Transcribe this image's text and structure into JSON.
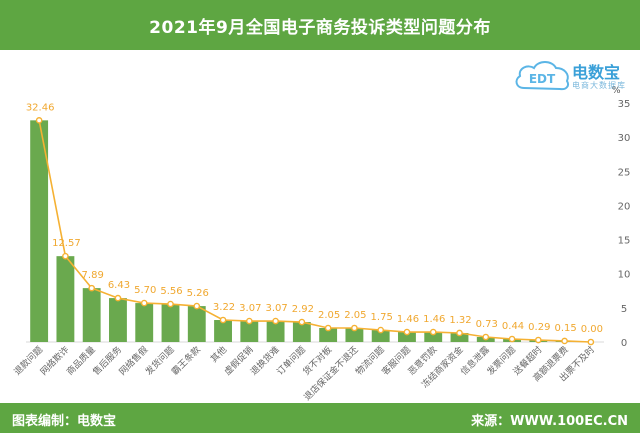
{
  "header": {
    "title": "2021年9月全国电子商务投诉类型问题分布"
  },
  "footer": {
    "left_text": "图表编制：电数宝",
    "right_text": "来源：WWW.100EC.CN"
  },
  "logo": {
    "mark_text": "EDT",
    "brand_text": "电数宝",
    "sub_text": "电商大数据库"
  },
  "colors": {
    "header_bg": "#5ea642",
    "bar": "#6aa94e",
    "line": "#f5b133",
    "label": "#f0a830",
    "axis_text": "#666666"
  },
  "chart_data": {
    "type": "bar+line",
    "unit_label": "%",
    "ylim": [
      0,
      35
    ],
    "yticks": [
      0,
      5,
      10,
      15,
      20,
      25,
      30,
      35
    ],
    "y_axis_side": "right",
    "grid": false,
    "categories": [
      "退款问题",
      "网络欺诈",
      "商品质量",
      "售后服务",
      "网络售假",
      "发货问题",
      "霸王条款",
      "其他",
      "虚假促销",
      "退换货难",
      "订单问题",
      "货不对板",
      "退店保证金不退还",
      "物流问题",
      "客服问题",
      "恶意罚款",
      "冻结商家资金",
      "信息泄露",
      "发票问题",
      "送餐超时",
      "高额退票费",
      "出票不及时"
    ],
    "values": [
      32.46,
      12.57,
      7.89,
      6.43,
      5.7,
      5.56,
      5.26,
      3.22,
      3.07,
      3.07,
      2.92,
      2.05,
      2.05,
      1.75,
      1.46,
      1.46,
      1.32,
      0.73,
      0.44,
      0.29,
      0.15,
      0.0
    ],
    "value_labels": [
      "32.46",
      "12.57",
      "7.89",
      "6.43",
      "5.70",
      "5.56",
      "5.26",
      "3.22",
      "3.07",
      "3.07",
      "2.92",
      "2.05",
      "2.05",
      "1.75",
      "1.46",
      "1.46",
      "1.32",
      "0.73",
      "0.44",
      "0.29",
      "0.15",
      "0.00"
    ]
  }
}
